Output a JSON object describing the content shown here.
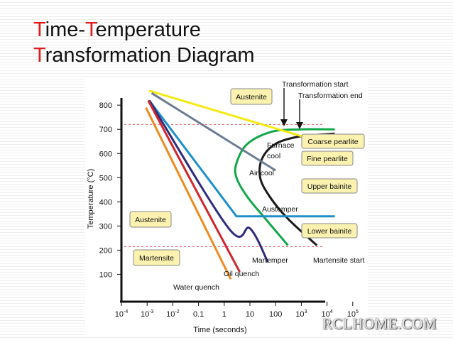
{
  "slide": {
    "title_line1_first": "T",
    "title_line1_rest": "ime-",
    "title_line1_t2": "T",
    "title_line1_rest2": "emperature",
    "title_line2_first": "T",
    "title_line2_rest": "ransformation Diagram",
    "watermark": "RCLHOME.COM"
  },
  "colors": {
    "title_accent": "#e01b1b"
  },
  "chart_data": {
    "type": "line",
    "xlabel": "Time (seconds)",
    "ylabel": "Temperature (°C)",
    "x_scale": "log",
    "xlim": [
      0.0001,
      100000
    ],
    "ylim": [
      0,
      860
    ],
    "x_ticks": [
      {
        "value": 0.0001,
        "base": "10",
        "exp": "-4"
      },
      {
        "value": 0.001,
        "base": "10",
        "exp": "-3"
      },
      {
        "value": 0.01,
        "base": "10",
        "exp": "-2"
      },
      {
        "value": 0.1,
        "label": "0.1"
      },
      {
        "value": 1,
        "label": "1"
      },
      {
        "value": 10,
        "label": "10"
      },
      {
        "value": 100,
        "label": "100"
      },
      {
        "value": 1000,
        "base": "10",
        "exp": "3"
      },
      {
        "value": 10000,
        "base": "10",
        "exp": "4"
      },
      {
        "value": 100000,
        "base": "10",
        "exp": "5"
      }
    ],
    "y_ticks": [
      100,
      200,
      300,
      400,
      500,
      600,
      700,
      800
    ],
    "reference_lines": [
      720,
      215
    ],
    "series": [
      {
        "name": "Transformation start",
        "color": "#12a84a",
        "points": [
          [
            300,
            220
          ],
          [
            40,
            330
          ],
          [
            8,
            420
          ],
          [
            3,
            500
          ],
          [
            3,
            560
          ],
          [
            8,
            640
          ],
          [
            70,
            690
          ],
          [
            1000,
            700
          ],
          [
            20000,
            700
          ]
        ]
      },
      {
        "name": "Transformation end",
        "color": "#1a1a1a",
        "points": [
          [
            4000,
            220
          ],
          [
            300,
            330
          ],
          [
            60,
            420
          ],
          [
            25,
            500
          ],
          [
            30,
            580
          ],
          [
            100,
            640
          ],
          [
            800,
            670
          ],
          [
            10000,
            680
          ],
          [
            20000,
            682
          ]
        ]
      },
      {
        "color": "#f5ea14",
        "points": [
          [
            0.0012,
            860
          ],
          [
            10000,
            640
          ]
        ]
      },
      {
        "name": "Air cool",
        "color": "#6b7c93",
        "points": [
          [
            0.0015,
            850
          ],
          [
            100,
            530
          ]
        ]
      },
      {
        "name": "Austemper",
        "color": "#1e90c8",
        "points": [
          [
            0.0012,
            820
          ],
          [
            3,
            340
          ],
          [
            20000,
            340
          ]
        ]
      },
      {
        "name": "Martemper",
        "color": "#2e2b7c",
        "points": [
          [
            0.0012,
            820
          ],
          [
            1.5,
            290
          ],
          [
            10,
            290
          ],
          [
            50,
            150
          ]
        ]
      },
      {
        "name": "Oil quench",
        "color": "#d0262c",
        "points": [
          [
            0.0011,
            820
          ],
          [
            4,
            110
          ]
        ]
      },
      {
        "name": "Water quench",
        "color": "#ef8a1f",
        "points": [
          [
            0.0009,
            790
          ],
          [
            1.8,
            80
          ]
        ]
      }
    ],
    "annotations": [
      {
        "id": "transformation_start",
        "text": "Transformation start"
      },
      {
        "id": "transformation_end",
        "text": "Transformation end"
      },
      {
        "id": "furnace_cool_1",
        "text": "Furnace"
      },
      {
        "id": "furnace_cool_2",
        "text": "cool"
      },
      {
        "id": "air_cool",
        "text": "Air cool"
      },
      {
        "id": "austemper",
        "text": "Austemper"
      },
      {
        "id": "martemper",
        "text": "Martemper"
      },
      {
        "id": "oil_quench",
        "text": "Oil quench"
      },
      {
        "id": "water_quench",
        "text": "Water quench"
      },
      {
        "id": "martensite_start",
        "text": "Martensite start"
      }
    ],
    "boxes": [
      {
        "id": "austenite_top",
        "text": "Austenite"
      },
      {
        "id": "coarse_pearlite",
        "text": "Coarse pearlite"
      },
      {
        "id": "fine_pearlite",
        "text": "Fine pearlite"
      },
      {
        "id": "upper_bainite",
        "text": "Upper bainite"
      },
      {
        "id": "lower_bainite",
        "text": "Lower bainite"
      },
      {
        "id": "austenite_left",
        "text": "Austenite"
      },
      {
        "id": "martensite",
        "text": "Martensite"
      }
    ]
  }
}
